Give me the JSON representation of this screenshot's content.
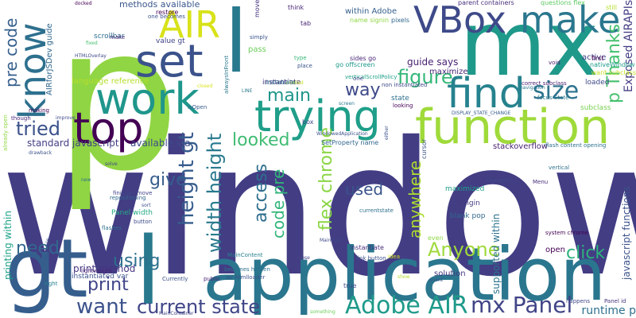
{
  "words": [
    {
      "text": "window",
      "color": "#433d84"
    },
    {
      "text": "p",
      "color": "#90d543"
    },
    {
      "text": "gt",
      "color": "#355e8d"
    },
    {
      "text": "application",
      "color": "#2a768e"
    },
    {
      "text": "l",
      "color": "#29798e"
    },
    {
      "text": "mx",
      "color": "#1f998a"
    },
    {
      "text": "function",
      "color": "#9fda3a"
    },
    {
      "text": "find",
      "color": "#26828e"
    },
    {
      "text": "trying",
      "color": "#1f9e89"
    },
    {
      "text": "work",
      "color": "#1f968b"
    },
    {
      "text": "top",
      "color": "#440154"
    },
    {
      "text": "set",
      "color": "#3b528b"
    },
    {
      "text": "VBox",
      "color": "#3e4a89"
    },
    {
      "text": "make",
      "color": "#2a778e"
    },
    {
      "text": "AIR",
      "color": "#d8e219"
    },
    {
      "text": "know",
      "color": "#2d708e"
    },
    {
      "text": "Adobe AIR",
      "color": "#1f9a8a"
    },
    {
      "text": "mx Panel",
      "color": "#414487"
    },
    {
      "text": "want",
      "color": "#3b528b"
    },
    {
      "text": "current state",
      "color": "#404588"
    },
    {
      "text": "figure",
      "color": "#35b779"
    },
    {
      "text": "size",
      "color": "#2c738e"
    },
    {
      "text": "width height",
      "color": "#297a8e"
    },
    {
      "text": "height gt",
      "color": "#365c8d"
    },
    {
      "text": "flex chrome",
      "color": "#8bd646"
    },
    {
      "text": "access",
      "color": "#2e6e8e"
    },
    {
      "text": "code pre",
      "color": "#32b67a"
    },
    {
      "text": "Anyone",
      "color": "#9fda3a"
    },
    {
      "text": "anywhere",
      "color": "#addc30"
    },
    {
      "text": "used",
      "color": "#3a538b"
    },
    {
      "text": "using",
      "color": "#2d708e"
    },
    {
      "text": "print",
      "color": "#404588"
    },
    {
      "text": "give",
      "color": "#365d8d"
    },
    {
      "text": "looked",
      "color": "#3fbc73"
    },
    {
      "text": "tried",
      "color": "#3b528b"
    },
    {
      "text": "main",
      "color": "#1f968b"
    },
    {
      "text": "way",
      "color": "#3e4989"
    },
    {
      "text": "need",
      "color": "#31688e"
    },
    {
      "text": "pre code",
      "color": "#355f8d"
    },
    {
      "text": "click",
      "color": "#2db27d"
    },
    {
      "text": "p Thanks",
      "color": "#46c06f"
    },
    {
      "text": "Exposed AIRAPIs",
      "color": "#433d84"
    },
    {
      "text": "javascript functions",
      "color": "#3b528b"
    },
    {
      "text": "runtime p",
      "color": "#2d708e"
    },
    {
      "text": "standard javascript",
      "color": "#433e85"
    },
    {
      "text": "available via",
      "color": "#3e4a89"
    },
    {
      "text": "print method",
      "color": "#453581"
    },
    {
      "text": "language reference",
      "color": "#b5de2b"
    },
    {
      "text": "methods available",
      "color": "#39558c"
    },
    {
      "text": "supported within",
      "color": "#2c728e"
    },
    {
      "text": "guide says",
      "color": "#481f70"
    },
    {
      "text": "maximize",
      "color": "#482878"
    },
    {
      "text": "stackoverflow",
      "color": "#482173"
    },
    {
      "text": "instantiate",
      "color": "#46327e"
    },
    {
      "text": "Panel width",
      "color": "#25ab82"
    },
    {
      "text": "maximized",
      "color": "#1fa188"
    },
    {
      "text": "Singin",
      "color": "#443a83"
    },
    {
      "text": "blank pop",
      "color": "#31688e"
    },
    {
      "text": "open",
      "color": "#440154"
    },
    {
      "text": "solution",
      "color": "#453781"
    },
    {
      "text": "state",
      "color": "#2d708e"
    },
    {
      "text": "active",
      "color": "#404588"
    },
    {
      "text": "scrollbar",
      "color": "#2d708e"
    },
    {
      "text": "value gt",
      "color": "#404588"
    },
    {
      "text": "AIRforJSDev guide",
      "color": "#31688e"
    },
    {
      "text": "loaded",
      "color": "#3e4989"
    },
    {
      "text": "subclass",
      "color": "#7ad151"
    },
    {
      "text": "cursor",
      "color": "#3a548c"
    },
    {
      "text": "SetProperty name",
      "color": "#31688e"
    },
    {
      "text": "pass",
      "color": "#6ccd5a"
    },
    {
      "text": "think",
      "color": "#482576"
    },
    {
      "text": "tab",
      "color": "#482475"
    },
    {
      "text": "first",
      "color": "#440154"
    },
    {
      "text": "nativeWindow",
      "color": "#1e9c89"
    },
    {
      "text": "want subclass",
      "color": "#c2df23"
    },
    {
      "text": "sides go",
      "color": "#482878"
    },
    {
      "text": "within Adobe",
      "color": "#35608d"
    },
    {
      "text": "parent containers",
      "color": "#472f7d"
    },
    {
      "text": "name signin",
      "color": "#8fd744"
    },
    {
      "text": "questions flex",
      "color": "#5ec962"
    },
    {
      "text": "still",
      "color": "#b5de2b"
    },
    {
      "text": "pixels",
      "color": "#31688e"
    },
    {
      "text": "printing within",
      "color": "#1fa187"
    },
    {
      "text": "instantiated var",
      "color": "#3b528b"
    },
    {
      "text": "lightweight",
      "color": "#482677"
    },
    {
      "text": "button",
      "color": "#3e4a89"
    },
    {
      "text": "MainContent",
      "color": "#26818e"
    },
    {
      "text": "air htmlloader",
      "color": "#3b528b"
    },
    {
      "text": "becomes hidden",
      "color": "#2c718e"
    },
    {
      "text": "public",
      "color": "#482374"
    },
    {
      "text": "Currently",
      "color": "#3b528b"
    },
    {
      "text": "flash content opening",
      "color": "#2d708e"
    },
    {
      "text": "Panel id",
      "color": "#46337e"
    },
    {
      "text": "happens",
      "color": "#3f4788"
    },
    {
      "text": "system chrome",
      "color": "#440154"
    },
    {
      "text": "finished move",
      "color": "#404588"
    },
    {
      "text": "repositioning",
      "color": "#31688e"
    },
    {
      "text": "correct subclass",
      "color": "#481d6f"
    },
    {
      "text": "focus State",
      "color": "#2a788e"
    },
    {
      "text": "DISPLAY_STATE_CHANGE",
      "color": "#365c8d"
    },
    {
      "text": "navigation",
      "color": "#2a768e"
    },
    {
      "text": "Menu",
      "color": "#472d7b"
    },
    {
      "text": "changed",
      "color": "#3e4a89"
    },
    {
      "text": "vertical",
      "color": "#2c728e"
    },
    {
      "text": "WindowedApplication",
      "color": "#3b528b"
    },
    {
      "text": "either",
      "color": "#3b528b"
    },
    {
      "text": "ovalled",
      "color": "#c2df23"
    },
    {
      "text": "non instantiated",
      "color": "#3e4989"
    },
    {
      "text": "verticalScrollPolicy",
      "color": "#1fa088"
    },
    {
      "text": "go offscreen",
      "color": "#1f9a8a"
    },
    {
      "text": "instatiate",
      "color": "#2d708e"
    },
    {
      "text": "looking",
      "color": "#440154"
    },
    {
      "text": "instantiate",
      "color": "#472d7b"
    },
    {
      "text": "link button",
      "color": "#3b528b"
    },
    {
      "text": "even",
      "color": "#8fd744"
    },
    {
      "text": "idea",
      "color": "#d0e11c"
    },
    {
      "text": "true",
      "color": "#3e4989"
    },
    {
      "text": "loose",
      "color": "#404588"
    },
    {
      "text": "restore",
      "color": "#440154"
    },
    {
      "text": "one becomes",
      "color": "#3b528b"
    },
    {
      "text": "move",
      "color": "#46327e"
    },
    {
      "text": "simply",
      "color": "#3a548c"
    },
    {
      "text": "type",
      "color": "#35b779"
    },
    {
      "text": "place",
      "color": "#3b528b"
    },
    {
      "text": "alwaysInFront",
      "color": "#2a788e"
    },
    {
      "text": "isOpen",
      "color": "#365c8d"
    },
    {
      "text": "make",
      "color": "#482878"
    },
    {
      "text": "box",
      "color": "#3e4989"
    },
    {
      "text": "already open",
      "color": "#8fd744"
    },
    {
      "text": "though",
      "color": "#482878"
    },
    {
      "text": "closed",
      "color": "#d8e219"
    },
    {
      "text": "currentstate",
      "color": "#2d708e"
    },
    {
      "text": "void",
      "color": "#481d6f"
    },
    {
      "text": "LINE",
      "color": "#2a788e"
    },
    {
      "text": "one",
      "color": "#3f4788"
    },
    {
      "text": "screen",
      "color": "#2a788e"
    },
    {
      "text": "MainSize",
      "color": "#3e4989"
    },
    {
      "text": "variable",
      "color": "#3b528b"
    },
    {
      "text": "right",
      "color": "#26828e"
    },
    {
      "text": "flashes",
      "color": "#2d708e"
    },
    {
      "text": "something",
      "color": "#6ccd5a"
    },
    {
      "text": "MainContainer",
      "color": "#404588"
    },
    {
      "text": "event",
      "color": "#3b528b"
    },
    {
      "text": "show",
      "color": "#b5de2b"
    },
    {
      "text": "docked",
      "color": "#440154"
    },
    {
      "text": "HTMLOverlay",
      "color": "#3e4989"
    },
    {
      "text": "sort",
      "color": "#3b528b"
    },
    {
      "text": "fixed",
      "color": "#46c06f"
    },
    {
      "text": "making",
      "color": "#440154"
    },
    {
      "text": "improve",
      "color": "#3e4989"
    },
    {
      "text": "drawback",
      "color": "#3b528b"
    },
    {
      "text": "new",
      "color": "#2d708e"
    },
    {
      "text": "solve",
      "color": "#404588"
    }
  ]
}
